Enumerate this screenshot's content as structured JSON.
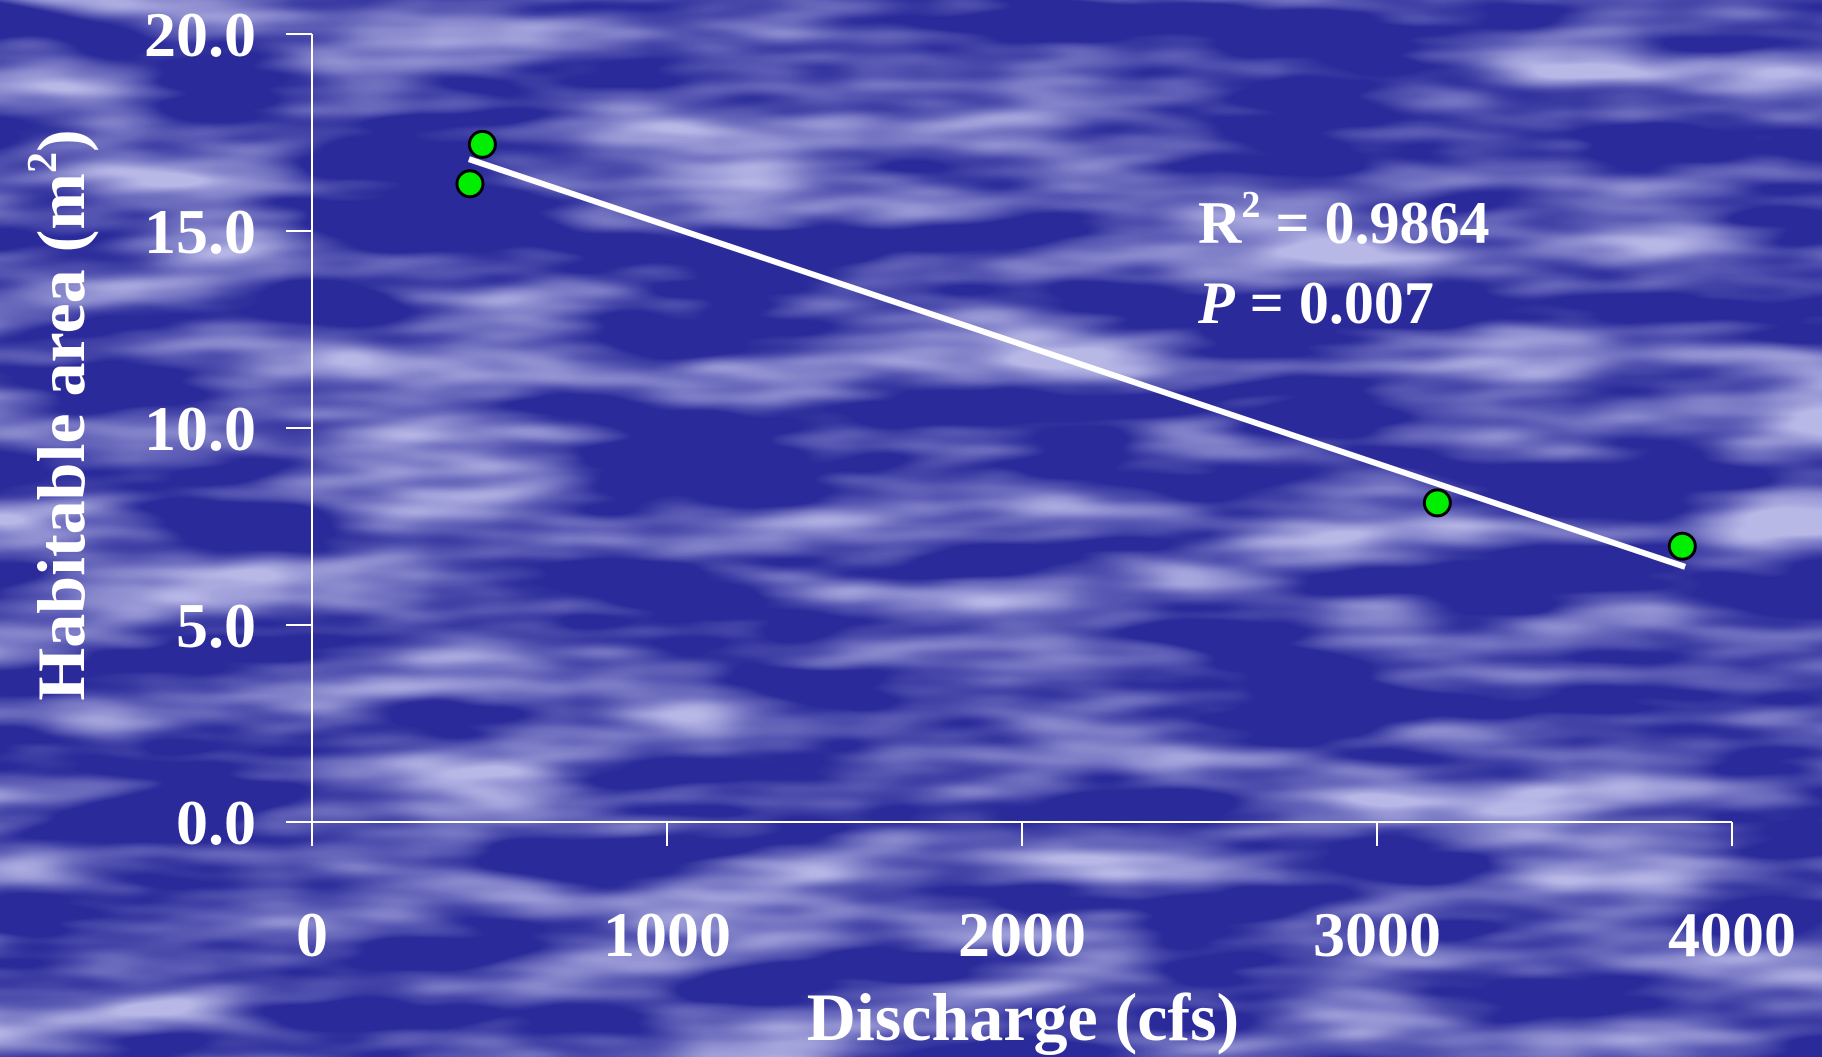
{
  "colors": {
    "background": "#2a2a9a",
    "background_light": "#7a7acc",
    "axis": "#ffffff",
    "point_fill": "#00ee00",
    "point_stroke": "#000000",
    "trend_line": "#ffffff"
  },
  "chart_data": {
    "type": "scatter",
    "xlabel": "Discharge (cfs)",
    "ylabel_text": "Habitable area (m",
    "ylabel_sup": "2",
    "ylabel_close": ")",
    "xlim": [
      0,
      4000
    ],
    "ylim": [
      0,
      20
    ],
    "x_ticks": [
      0,
      1000,
      2000,
      3000,
      4000
    ],
    "x_tick_labels": [
      "0",
      "1000",
      "2000",
      "3000",
      "4000"
    ],
    "y_ticks": [
      0,
      5,
      10,
      15,
      20
    ],
    "y_tick_labels": [
      "0.0",
      "5.0",
      "10.0",
      "15.0",
      "20.0"
    ],
    "points": [
      {
        "x": 445,
        "y": 16.2
      },
      {
        "x": 480,
        "y": 17.2
      },
      {
        "x": 3170,
        "y": 8.1
      },
      {
        "x": 3860,
        "y": 7.0
      }
    ],
    "trend_line": {
      "x": [
        450,
        3860
      ],
      "y": [
        16.8,
        6.5
      ]
    },
    "grid": false,
    "annotations": {
      "r2_label": "R",
      "r2_sup": "2",
      "r2_value": " = 0.9864",
      "p_label": "P",
      "p_value": " = 0.007"
    }
  }
}
